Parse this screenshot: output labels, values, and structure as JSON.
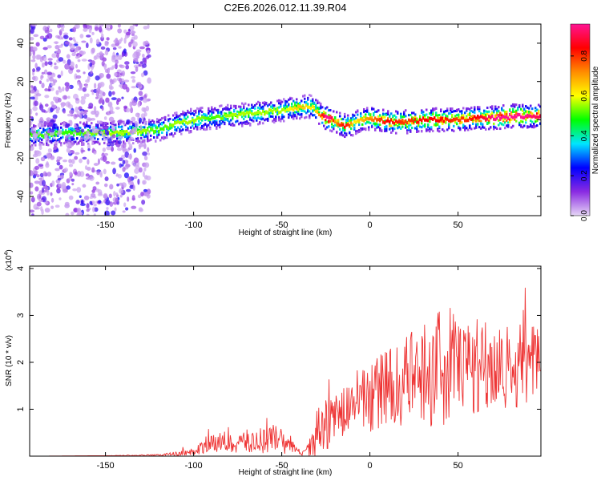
{
  "chart_data": [
    {
      "type": "heatmap",
      "title": "C2E6.2026.012.11.39.R04",
      "xlabel": "Height of straight line (km)",
      "ylabel": "Frequency (Hz)",
      "xlim": [
        -193,
        97
      ],
      "ylim": [
        -50,
        50
      ],
      "xticks": [
        -150,
        -100,
        -50,
        0,
        50
      ],
      "yticks": [
        -40,
        -20,
        0,
        20,
        40
      ],
      "colorbar": {
        "label": "Normalized spectral amplitude",
        "range": [
          0,
          0.96
        ],
        "ticks": [
          0,
          0.2,
          0.4,
          0.6,
          0.8
        ],
        "stops": [
          "#e6d6f6",
          "#8a2be2",
          "#0000ff",
          "#00e5ff",
          "#00ff00",
          "#ffff00",
          "#ff8c00",
          "#ff0000",
          "#ff1493"
        ]
      },
      "ridge": {
        "x": [
          -193,
          -170,
          -150,
          -130,
          -120,
          -110,
          -100,
          -90,
          -80,
          -70,
          -60,
          -50,
          -45,
          -40,
          -35,
          -32,
          -30,
          -28,
          -25,
          -22,
          -20,
          -18,
          -15,
          -12,
          -10,
          -8,
          -5,
          0,
          5,
          10,
          20,
          30,
          40,
          50,
          60,
          70,
          80,
          97
        ],
        "freq": [
          -8,
          -7,
          -7,
          -6,
          -5,
          -2,
          0,
          1,
          2,
          3,
          4,
          5,
          6,
          6.5,
          7,
          6,
          4,
          2,
          1,
          0,
          -1,
          -2,
          -3,
          -3,
          -2,
          -1,
          0,
          1,
          0,
          -1,
          -1,
          0,
          0,
          0,
          1,
          1,
          2,
          2
        ],
        "amplitude": [
          0.45,
          0.45,
          0.5,
          0.5,
          0.45,
          0.5,
          0.5,
          0.45,
          0.5,
          0.5,
          0.5,
          0.5,
          0.55,
          0.6,
          0.55,
          0.55,
          0.6,
          0.7,
          0.9,
          0.8,
          0.6,
          0.7,
          0.75,
          0.7,
          0.55,
          0.55,
          0.6,
          0.65,
          0.7,
          0.75,
          0.7,
          0.75,
          0.75,
          0.7,
          0.75,
          0.85,
          0.9,
          0.8
        ]
      },
      "noise_region_x": [
        -193,
        -125
      ]
    },
    {
      "type": "line",
      "xlabel": "Height of straight line (km)",
      "ylabel": "SNR (10 * v/v)",
      "y_multiplier": "(x10",
      "y_multiplier_exp": "4",
      "y_multiplier_close": ")",
      "xlim": [
        -193,
        97
      ],
      "ylim": [
        0,
        4.05
      ],
      "xticks": [
        -150,
        -100,
        -50,
        0,
        50
      ],
      "yticks": [
        1,
        2,
        3,
        4
      ],
      "color": "#ee3333",
      "series": [
        {
          "name": "SNR",
          "x": [
            -193,
            -150,
            -120,
            -110,
            -100,
            -95,
            -90,
            -85,
            -80,
            -75,
            -70,
            -65,
            -60,
            -55,
            -50,
            -45,
            -42,
            -40,
            -38,
            -35,
            -33,
            -30,
            -28,
            -26,
            -24,
            -22,
            -20,
            -18,
            -15,
            -12,
            -10,
            -5,
            0,
            5,
            10,
            15,
            20,
            25,
            30,
            35,
            40,
            45,
            50,
            55,
            60,
            65,
            70,
            75,
            80,
            85,
            90,
            97
          ],
          "y": [
            0,
            0.01,
            0.02,
            0.05,
            0.1,
            0.18,
            0.25,
            0.3,
            0.25,
            0.28,
            0.32,
            0.3,
            0.35,
            0.38,
            0.32,
            0.25,
            0.12,
            0.08,
            0.05,
            0.15,
            0.3,
            0.5,
            0.8,
            0.7,
            0.65,
            0.75,
            0.9,
            0.8,
            0.95,
            1.0,
            1.15,
            1.2,
            1.3,
            1.35,
            1.45,
            1.5,
            1.55,
            1.7,
            1.8,
            1.8,
            1.9,
            1.95,
            1.95,
            1.9,
            1.95,
            2.0,
            1.95,
            1.9,
            1.9,
            1.95,
            2.0,
            1.95
          ],
          "spread": [
            0,
            0,
            0.02,
            0.05,
            0.08,
            0.15,
            0.18,
            0.2,
            0.2,
            0.2,
            0.25,
            0.3,
            0.3,
            0.35,
            0.3,
            0.2,
            0.1,
            0.06,
            0.05,
            0.15,
            0.4,
            0.5,
            0.6,
            0.6,
            0.5,
            0.5,
            0.6,
            0.5,
            0.5,
            0.6,
            0.6,
            0.7,
            0.8,
            0.8,
            0.9,
            0.9,
            1.0,
            1.0,
            1.1,
            1.2,
            1.3,
            1.3,
            1.2,
            1.2,
            1.1,
            1.1,
            1.0,
            1.0,
            1.0,
            0.9,
            0.9,
            0.8
          ]
        }
      ]
    }
  ]
}
